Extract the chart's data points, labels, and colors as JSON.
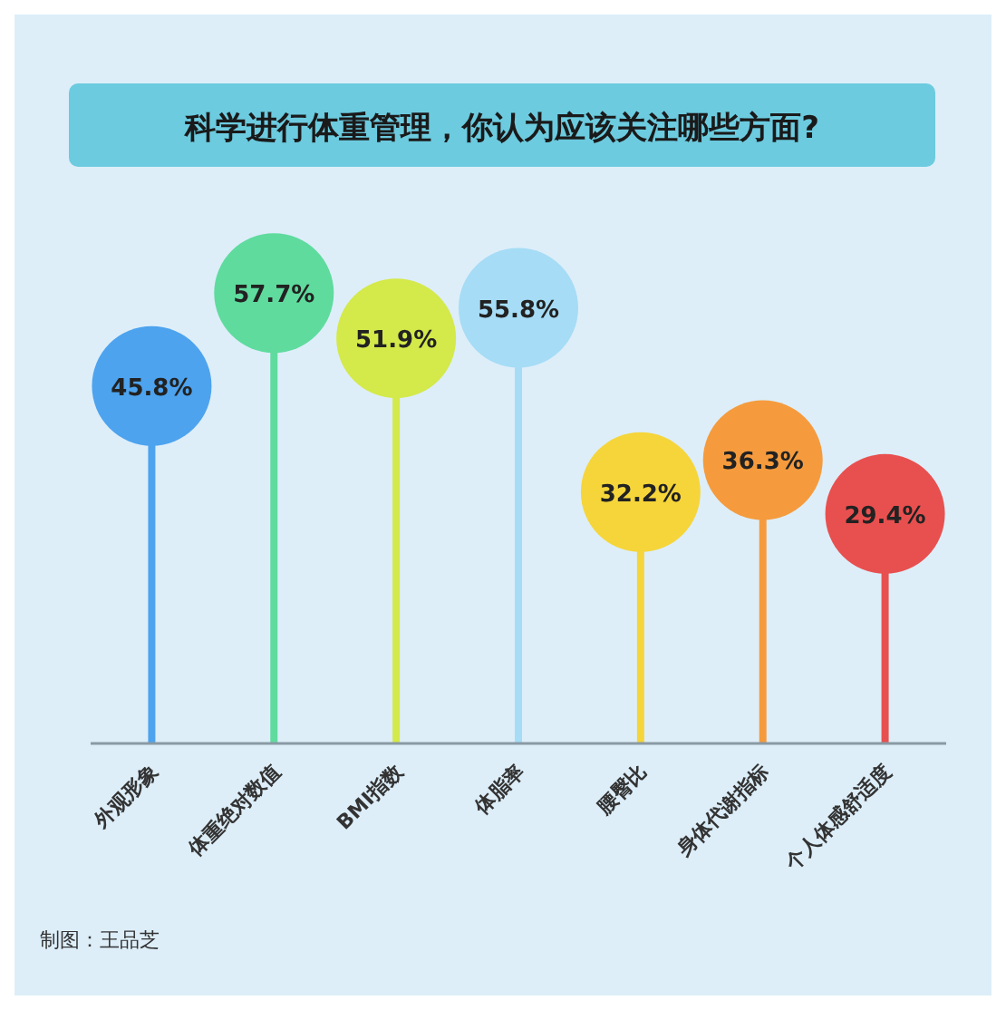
{
  "chart_data": {
    "type": "lollipop",
    "title": "科学进行体重管理，你认为应该关注哪些方面?",
    "categories": [
      "外观形象",
      "体重绝对数值",
      "BMI指数",
      "体脂率",
      "腰臀比",
      "身体代谢指标",
      "个人体感舒适度"
    ],
    "values": [
      45.8,
      57.7,
      51.9,
      55.8,
      32.2,
      36.3,
      29.4
    ],
    "colors": [
      "#4da3ee",
      "#5fdb9e",
      "#d4e94a",
      "#a6dcf5",
      "#f5d53a",
      "#f59b3d",
      "#e8504f"
    ],
    "value_labels": [
      "45.8%",
      "57.7%",
      "51.9%",
      "55.8%",
      "32.2%",
      "36.3%",
      "29.4%"
    ],
    "annotations": [
      "制图：王品芝"
    ]
  }
}
